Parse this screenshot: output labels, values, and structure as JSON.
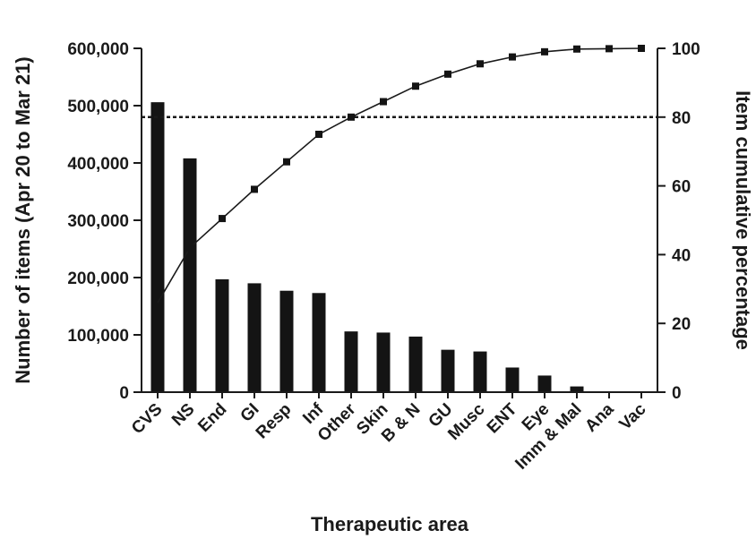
{
  "chart_data": {
    "type": "bar",
    "title": "",
    "xlabel": "Therapeutic area",
    "ylabel": "Number of items (Apr 20 to Mar 21)",
    "y2label": "Item cumulative percentage",
    "categories": [
      "CVS",
      "NS",
      "End",
      "GI",
      "Resp",
      "Inf",
      "Other",
      "Skin",
      "B & N",
      "GU",
      "Musc",
      "ENT",
      "Eye",
      "Imm & Mal",
      "Ana",
      "Vac"
    ],
    "ylim": [
      0,
      600000
    ],
    "y_ticks": [
      0,
      100000,
      200000,
      300000,
      400000,
      500000,
      600000
    ],
    "y_tick_labels": [
      "0",
      "100,000",
      "200,000",
      "300,000",
      "400,000",
      "500,000",
      "600,000"
    ],
    "y2lim": [
      0,
      100
    ],
    "y2_ticks": [
      0,
      20,
      40,
      60,
      80,
      100
    ],
    "y2_tick_labels": [
      "0",
      "20",
      "40",
      "60",
      "80",
      "100"
    ],
    "series": [
      {
        "type": "bar",
        "axis": "left",
        "values": [
          506000,
          408000,
          197000,
          190000,
          177000,
          173000,
          106000,
          104000,
          97000,
          74000,
          71000,
          43000,
          29000,
          10000,
          800,
          300
        ]
      },
      {
        "type": "line",
        "axis": "right",
        "values": [
          26,
          42,
          50.5,
          59,
          67,
          75,
          80,
          84.5,
          89,
          92.5,
          95.5,
          97.5,
          99,
          99.8,
          99.9,
          100
        ]
      }
    ],
    "reference_line": {
      "axis": "right",
      "value": 80,
      "style": "dotted"
    },
    "grid": false,
    "legend": "none"
  }
}
